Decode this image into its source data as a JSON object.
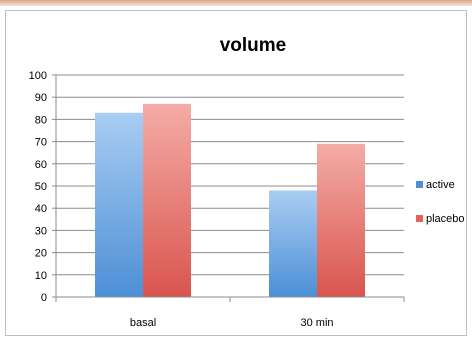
{
  "chart_data": {
    "type": "bar",
    "title": "volume",
    "categories": [
      "basal",
      "30 min"
    ],
    "series": [
      {
        "name": "active",
        "values": [
          83,
          48
        ],
        "color": "#5b9bd5"
      },
      {
        "name": "placebo",
        "values": [
          87,
          69
        ],
        "color": "#e46b65"
      }
    ],
    "yticks": [
      "0",
      "10",
      "20",
      "30",
      "40",
      "50",
      "60",
      "70",
      "80",
      "90",
      "100"
    ],
    "ylim": [
      0,
      100
    ],
    "grid": true,
    "legend_position": "right"
  }
}
